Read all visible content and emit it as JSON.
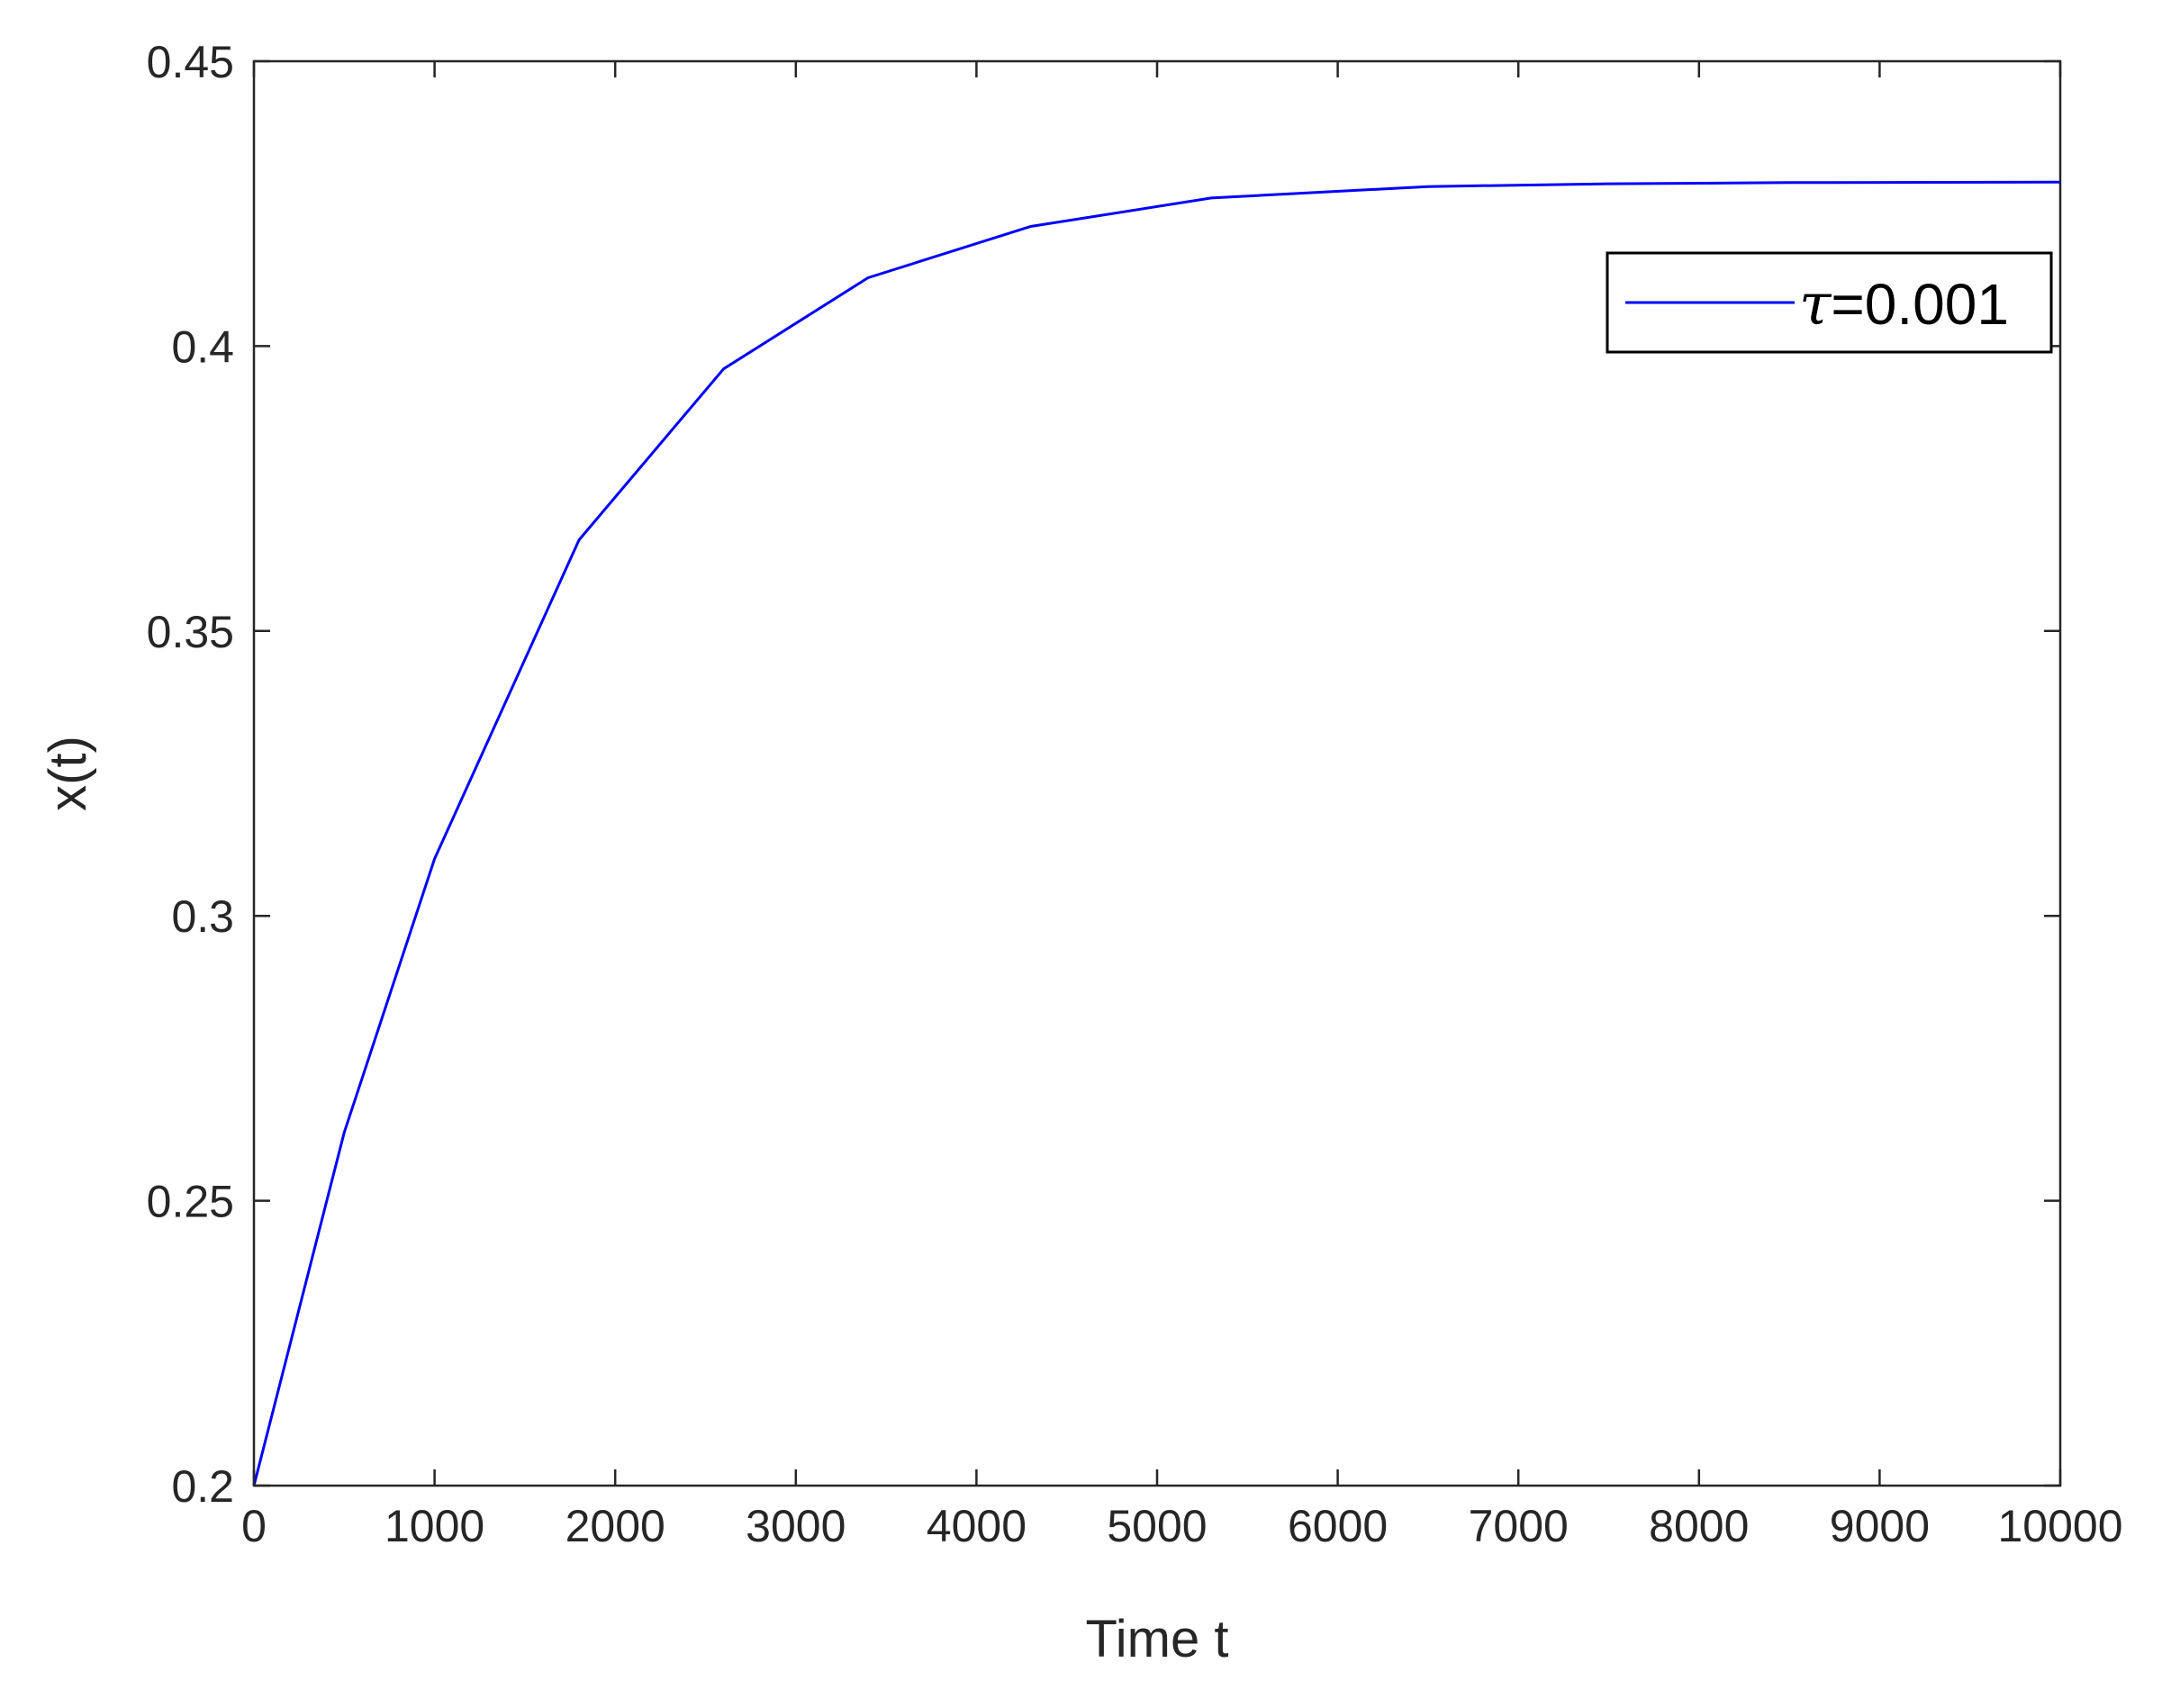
{
  "chart_data": {
    "type": "line",
    "title": "",
    "xlabel": "Time t",
    "ylabel": "x(t)",
    "xlim": [
      0,
      10000
    ],
    "ylim": [
      0.2,
      0.45
    ],
    "xticks": [
      0,
      1000,
      2000,
      3000,
      4000,
      5000,
      6000,
      7000,
      8000,
      9000,
      10000
    ],
    "xtick_labels": [
      "0",
      "1000",
      "2000",
      "3000",
      "4000",
      "5000",
      "6000",
      "7000",
      "8000",
      "9000",
      "10000"
    ],
    "yticks": [
      0.2,
      0.25,
      0.3,
      0.35,
      0.4,
      0.45
    ],
    "ytick_labels": [
      "0.2",
      "0.25",
      "0.3",
      "0.35",
      "0.4",
      "0.45"
    ],
    "grid": false,
    "legend_position": "top-right",
    "series": [
      {
        "name": "τ=0.001",
        "legend_symbol": "τ",
        "legend_value": "=0.001",
        "color": "#0000ff",
        "x": [
          0,
          500,
          1000,
          1800,
          2600,
          3400,
          4300,
          5300,
          6500,
          7500,
          8500,
          10000
        ],
        "y": [
          0.2,
          0.262,
          0.31,
          0.366,
          0.396,
          0.412,
          0.421,
          0.426,
          0.428,
          0.4285,
          0.4287,
          0.4288
        ]
      }
    ]
  }
}
